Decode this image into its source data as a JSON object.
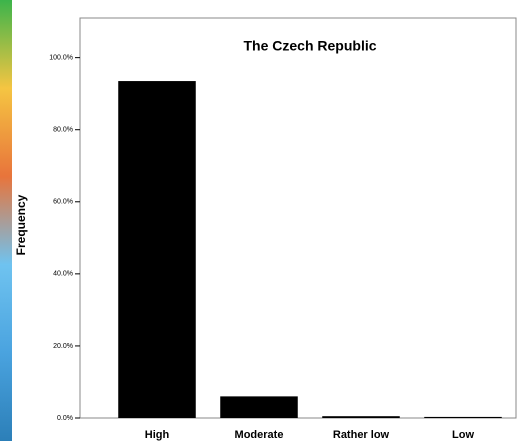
{
  "chart_data": {
    "type": "bar",
    "title": "The Czech Republic",
    "y_label": "Frequency",
    "categories": [
      "High",
      "Moderate",
      "Rather low",
      "Low"
    ],
    "values": [
      93.5,
      6,
      0.5,
      0.3
    ],
    "color": "#000000",
    "ylim": [
      0,
      111
    ],
    "yticks": [
      {
        "value": 0,
        "label": "0.0%"
      },
      {
        "value": 20,
        "label": "20.0%"
      },
      {
        "value": 40,
        "label": "40.0%"
      },
      {
        "value": 60,
        "label": "60.0%"
      },
      {
        "value": 80,
        "label": "80.0%"
      },
      {
        "value": 100,
        "label": "100.0%"
      }
    ],
    "grid": false
  }
}
